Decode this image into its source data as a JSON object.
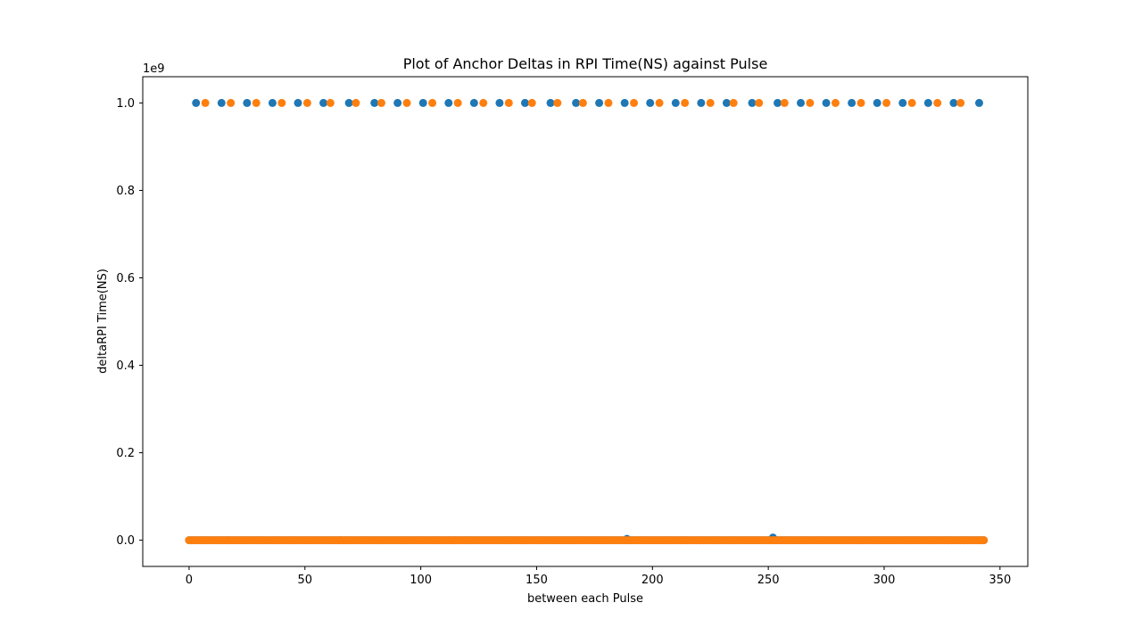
{
  "chart_data": {
    "type": "scatter",
    "title": "Plot of Anchor Deltas in RPI Time(NS) against Pulse",
    "xlabel": "between each Pulse",
    "ylabel": "deltaRPI Time(NS)",
    "y_offset_label": "1e9",
    "xlim": [
      -20,
      362
    ],
    "ylim": [
      -60000000.0,
      1060000000.0
    ],
    "x_ticks": [
      0,
      50,
      100,
      150,
      200,
      250,
      300,
      350
    ],
    "y_ticks": [
      0,
      200000000,
      400000000,
      600000000,
      800000000,
      1000000000
    ],
    "y_tick_labels": [
      "0.0",
      "0.2",
      "0.4",
      "0.6",
      "0.8",
      "1.0"
    ],
    "grid": false,
    "legend": "none",
    "series": [
      {
        "color": "#1f77b4",
        "x_range": [
          0,
          343
        ],
        "baseline_y": 0,
        "outliers": [
          {
            "x": 189,
            "y": 3000000
          },
          {
            "x": 252,
            "y": 6000000
          }
        ],
        "high_y": 1000000000,
        "high_x": [
          3,
          14,
          25,
          36,
          47,
          58,
          69,
          80,
          90,
          101,
          112,
          123,
          134,
          145,
          156,
          167,
          177,
          188,
          199,
          210,
          221,
          232,
          243,
          254,
          264,
          275,
          286,
          297,
          308,
          319,
          330,
          341
        ]
      },
      {
        "color": "#ff7f0e",
        "x_range": [
          0,
          343
        ],
        "baseline_y": 0,
        "outliers": [],
        "high_y": 1000000000,
        "high_x": [
          7,
          18,
          29,
          40,
          51,
          61,
          72,
          83,
          94,
          105,
          116,
          127,
          138,
          148,
          159,
          170,
          181,
          192,
          203,
          214,
          225,
          235,
          246,
          257,
          268,
          279,
          290,
          301,
          312,
          323,
          333
        ]
      }
    ]
  }
}
